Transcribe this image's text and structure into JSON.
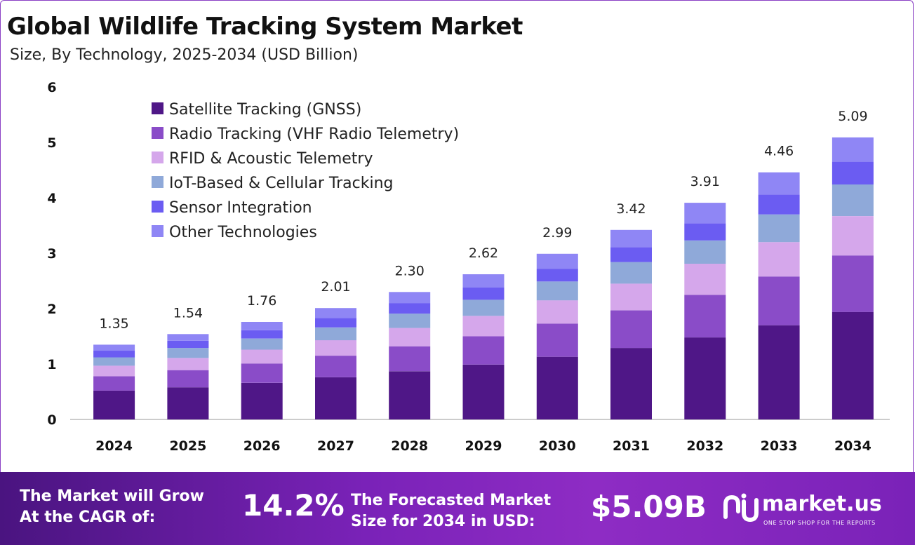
{
  "header": {
    "title": "Global Wildlife Tracking System Market",
    "subtitle": "Size, By Technology, 2025-2034 (USD Billion)"
  },
  "colors": {
    "satellite": "#4f1787",
    "radio": "#8a4cc8",
    "rfid": "#d5a7eb",
    "iot": "#8fa9d9",
    "sensor": "#6b5cf2",
    "other": "#8f86f5",
    "footer": "#7a22b8"
  },
  "chart_data": {
    "type": "bar",
    "stacked": true,
    "title": "Global Wildlife Tracking System Market",
    "subtitle": "Size, By Technology, 2025-2034 (USD Billion)",
    "categories": [
      "2024",
      "2025",
      "2026",
      "2027",
      "2028",
      "2029",
      "2030",
      "2031",
      "2032",
      "2033",
      "2034"
    ],
    "totals": [
      "1.35",
      "1.54",
      "1.76",
      "2.01",
      "2.30",
      "2.62",
      "2.99",
      "3.42",
      "3.91",
      "4.46",
      "5.09"
    ],
    "series": [
      {
        "name": "Satellite Tracking (GNSS)",
        "values": [
          0.52,
          0.58,
          0.66,
          0.76,
          0.87,
          0.99,
          1.13,
          1.29,
          1.48,
          1.7,
          1.94
        ]
      },
      {
        "name": "Radio Tracking (VHF Radio Telemetry)",
        "values": [
          0.26,
          0.31,
          0.35,
          0.39,
          0.45,
          0.51,
          0.6,
          0.68,
          0.77,
          0.88,
          1.02
        ]
      },
      {
        "name": "RFID & Acoustic Telemetry",
        "values": [
          0.19,
          0.22,
          0.25,
          0.28,
          0.33,
          0.37,
          0.42,
          0.48,
          0.56,
          0.62,
          0.71
        ]
      },
      {
        "name": "IoT-Based & Cellular Tracking",
        "values": [
          0.15,
          0.18,
          0.2,
          0.23,
          0.26,
          0.29,
          0.34,
          0.39,
          0.42,
          0.5,
          0.57
        ]
      },
      {
        "name": "Sensor Integration",
        "values": [
          0.12,
          0.13,
          0.15,
          0.17,
          0.19,
          0.22,
          0.23,
          0.27,
          0.31,
          0.36,
          0.41
        ]
      },
      {
        "name": "Other Technologies",
        "values": [
          0.11,
          0.12,
          0.15,
          0.18,
          0.2,
          0.24,
          0.27,
          0.31,
          0.37,
          0.4,
          0.44
        ]
      }
    ],
    "yticks": [
      "0",
      "1",
      "2",
      "3",
      "4",
      "5",
      "6"
    ],
    "ylim": [
      0,
      6
    ],
    "xlabel": "",
    "ylabel": "",
    "legend_position": "top-left",
    "grid": false
  },
  "footer": {
    "cagr_label_line1": "The Market will Grow",
    "cagr_label_line2": "At the CAGR of:",
    "cagr_value": "14.2%",
    "forecast_label_line1": "The Forecasted Market",
    "forecast_label_line2": "Size for 2034 in USD:",
    "forecast_value": "$5.09B",
    "brand_name": "market.us",
    "brand_tagline": "ONE STOP SHOP FOR THE REPORTS"
  }
}
